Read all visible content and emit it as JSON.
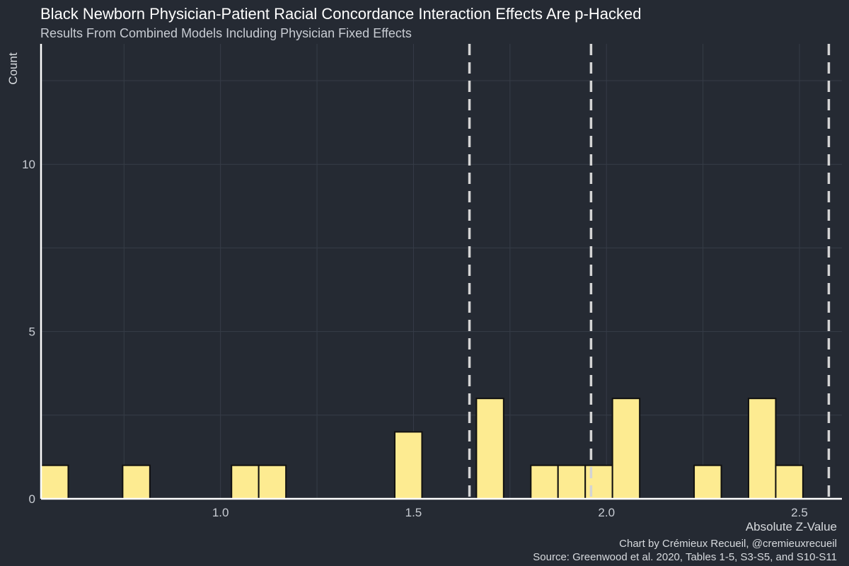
{
  "chart_data": {
    "type": "bar",
    "title": "Black Newborn Physician-Patient Racial Concordance Interaction Effects Are p-Hacked",
    "subtitle": "Results From Combined Models Including Physician Fixed Effects",
    "xlabel": "Absolute Z-Value",
    "ylabel": "Count",
    "caption_line1": "Chart by Crémieux Recueil, @cremieuxrecueil",
    "caption_line2": "Source: Greenwood et al. 2020, Tables 1-5, S3-S5, and S10-S11",
    "xlim": [
      0.535,
      2.61
    ],
    "ylim": [
      0,
      13.6
    ],
    "x_ticks": [
      1.0,
      1.5,
      2.0,
      2.5
    ],
    "x_tick_labels": [
      "1.0",
      "1.5",
      "2.0",
      "2.5"
    ],
    "y_ticks": [
      0,
      5,
      10
    ],
    "y_tick_labels": [
      "0",
      "5",
      "10"
    ],
    "bin_width": 0.0705,
    "bins": [
      {
        "x0": 0.535,
        "count": 1
      },
      {
        "x0": 0.7465,
        "count": 1
      },
      {
        "x0": 1.0285,
        "count": 1
      },
      {
        "x0": 1.099,
        "count": 1
      },
      {
        "x0": 1.4515,
        "count": 2
      },
      {
        "x0": 1.663,
        "count": 3
      },
      {
        "x0": 1.804,
        "count": 1
      },
      {
        "x0": 1.8745,
        "count": 1
      },
      {
        "x0": 1.945,
        "count": 1
      },
      {
        "x0": 2.0155,
        "count": 3
      },
      {
        "x0": 2.227,
        "count": 1
      },
      {
        "x0": 2.368,
        "count": 3
      },
      {
        "x0": 2.4385,
        "count": 1
      }
    ],
    "reference_lines": [
      1.645,
      1.96,
      2.576
    ],
    "grid": true,
    "colors": {
      "background": "#252a33",
      "bar_fill": "#fdeb91",
      "bar_stroke": "#111111",
      "grid": "#363c47",
      "reference_line": "#d4d4d4",
      "axis_line": "#ffffff"
    }
  }
}
